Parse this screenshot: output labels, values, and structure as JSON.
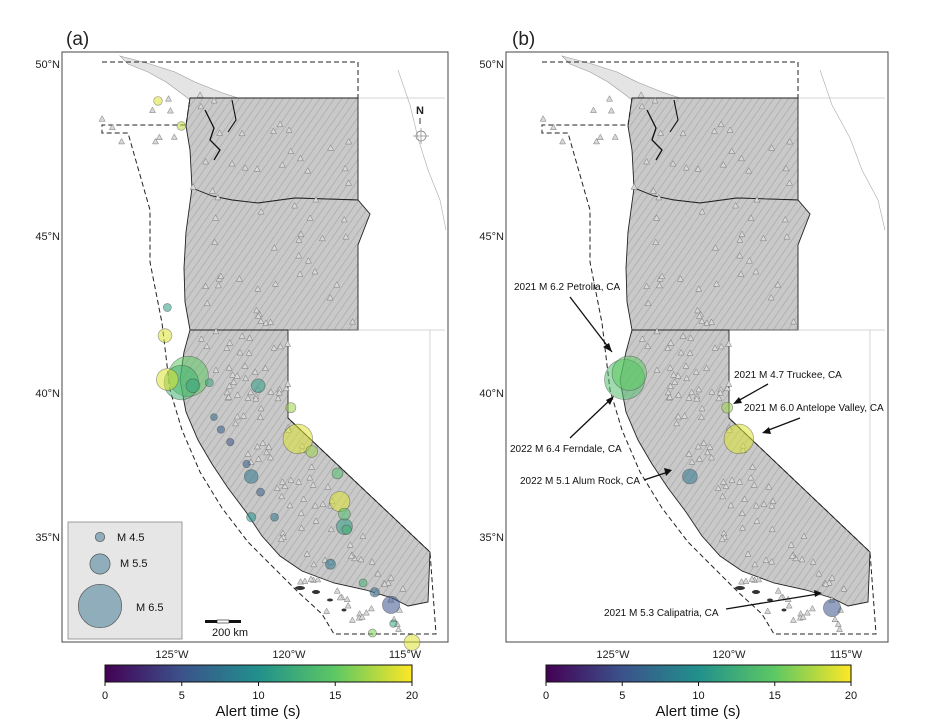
{
  "panels": [
    {
      "label": "(a)",
      "lat_labels": [
        "50°N",
        "45°N",
        "40°N",
        "35°N"
      ],
      "lon_labels": [
        "125°W",
        "120°W",
        "115°W"
      ]
    },
    {
      "label": "(b)",
      "lat_labels": [
        "50°N",
        "45°N",
        "40°N",
        "35°N"
      ],
      "lon_labels": [
        "125°W",
        "120°W",
        "115°W"
      ]
    }
  ],
  "north_arrow": "N",
  "scale_bar": "200 km",
  "legend": [
    {
      "label": "M 4.5",
      "mag": 4.5
    },
    {
      "label": "M 5.5",
      "mag": 5.5
    },
    {
      "label": "M 6.5",
      "mag": 6.5
    }
  ],
  "colorbar": {
    "title": "Alert time (s)",
    "ticks": [
      "0",
      "5",
      "10",
      "15",
      "20"
    ],
    "colors": [
      "#440154",
      "#3b528b",
      "#21908c",
      "#5dc863",
      "#fde725"
    ]
  },
  "colors": {
    "land_gray": "#c7c7c7",
    "ocean": "#ffffff",
    "station": "#b5b5b5"
  },
  "events_a": [
    {
      "lon": -125.6,
      "lat": 49.3,
      "mag": 4.4,
      "t": 19
    },
    {
      "lon": -124.6,
      "lat": 48.5,
      "mag": 4.4,
      "t": 18
    },
    {
      "lon": -125.2,
      "lat": 42.7,
      "mag": 4.3,
      "t": 11
    },
    {
      "lon": -125.3,
      "lat": 41.8,
      "mag": 5.0,
      "t": 19
    },
    {
      "lon": -125.2,
      "lat": 40.4,
      "mag": 5.6,
      "t": 19
    },
    {
      "lon": -124.3,
      "lat": 40.5,
      "mag": 6.4,
      "t": 15
    },
    {
      "lon": -124.6,
      "lat": 40.3,
      "mag": 6.2,
      "t": 13
    },
    {
      "lon": -124.1,
      "lat": 40.2,
      "mag": 5.0,
      "t": 12
    },
    {
      "lon": -123.4,
      "lat": 40.3,
      "mag": 4.3,
      "t": 12
    },
    {
      "lon": -121.3,
      "lat": 40.2,
      "mag": 5.0,
      "t": 11
    },
    {
      "lon": -119.9,
      "lat": 39.5,
      "mag": 4.6,
      "t": 17
    },
    {
      "lon": -119.6,
      "lat": 38.5,
      "mag": 6.0,
      "t": 19
    },
    {
      "lon": -119.0,
      "lat": 38.1,
      "mag": 4.8,
      "t": 17
    },
    {
      "lon": -123.2,
      "lat": 39.2,
      "mag": 4.1,
      "t": 7
    },
    {
      "lon": -122.9,
      "lat": 38.8,
      "mag": 4.2,
      "t": 6
    },
    {
      "lon": -122.5,
      "lat": 38.4,
      "mag": 4.2,
      "t": 5
    },
    {
      "lon": -121.8,
      "lat": 37.7,
      "mag": 4.2,
      "t": 6
    },
    {
      "lon": -121.6,
      "lat": 37.3,
      "mag": 5.0,
      "t": 8
    },
    {
      "lon": -121.2,
      "lat": 36.8,
      "mag": 4.3,
      "t": 6
    },
    {
      "lon": -121.6,
      "lat": 36.0,
      "mag": 4.5,
      "t": 10
    },
    {
      "lon": -120.6,
      "lat": 36.0,
      "mag": 4.3,
      "t": 8
    },
    {
      "lon": -117.9,
      "lat": 37.4,
      "mag": 4.7,
      "t": 14
    },
    {
      "lon": -117.8,
      "lat": 36.5,
      "mag": 5.5,
      "t": 19
    },
    {
      "lon": -117.6,
      "lat": 36.1,
      "mag": 4.8,
      "t": 14
    },
    {
      "lon": -117.6,
      "lat": 35.7,
      "mag": 5.2,
      "t": 11
    },
    {
      "lon": -117.5,
      "lat": 35.6,
      "mag": 4.5,
      "t": 13
    },
    {
      "lon": -118.2,
      "lat": 34.5,
      "mag": 4.6,
      "t": 8
    },
    {
      "lon": -116.8,
      "lat": 33.9,
      "mag": 4.3,
      "t": 13
    },
    {
      "lon": -116.3,
      "lat": 33.6,
      "mag": 4.5,
      "t": 7
    },
    {
      "lon": -115.6,
      "lat": 33.2,
      "mag": 5.3,
      "t": 5
    },
    {
      "lon": -115.5,
      "lat": 32.6,
      "mag": 4.2,
      "t": 12
    },
    {
      "lon": -116.4,
      "lat": 32.3,
      "mag": 4.3,
      "t": 16
    },
    {
      "lon": -114.7,
      "lat": 32.0,
      "mag": 5.2,
      "t": 19
    }
  ],
  "events_b": [
    {
      "lon": -124.3,
      "lat": 40.6,
      "mag": 6.2,
      "t": 15,
      "name": "2021 M 6.2 Petrolia, CA"
    },
    {
      "lon": -124.5,
      "lat": 40.4,
      "mag": 6.4,
      "t": 14,
      "name": "2022 M 6.4 Ferndale, CA"
    },
    {
      "lon": -120.1,
      "lat": 39.5,
      "mag": 4.7,
      "t": 17,
      "name": "2021 M 4.7 Truckee, CA"
    },
    {
      "lon": -119.6,
      "lat": 38.5,
      "mag": 6.0,
      "t": 19,
      "name": "2021 M 6.0 Antelope Valley, CA"
    },
    {
      "lon": -121.7,
      "lat": 37.3,
      "mag": 5.1,
      "t": 8,
      "name": "2022 M 5.1 Alum Rock, CA"
    },
    {
      "lon": -115.6,
      "lat": 33.1,
      "mag": 5.3,
      "t": 5,
      "name": "2021 M 5.3 Calipatria, CA"
    }
  ]
}
